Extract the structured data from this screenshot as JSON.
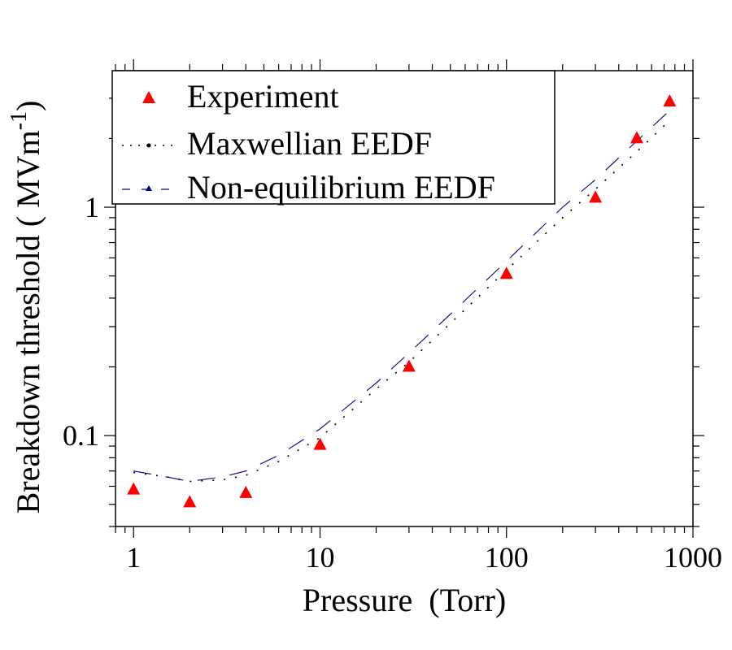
{
  "chart_data": {
    "type": "scatter",
    "title": "",
    "xlabel": "Pressure  (Torr)",
    "ylabel": "Breakdown threshold ( MVm",
    "ylabel_superscript": "-1",
    "ylabel_close": ")",
    "xscale": "log",
    "yscale": "log",
    "xlim": [
      0.8,
      1000
    ],
    "ylim": [
      0.04,
      3.96
    ],
    "xticks": [
      1,
      10,
      100,
      1000
    ],
    "xtick_labels": [
      "1",
      "10",
      "100",
      "1000"
    ],
    "yticks": [
      0.1,
      1
    ],
    "ytick_labels": [
      "0.1",
      "1"
    ],
    "grid": false,
    "legend_position": "top-left",
    "series": [
      {
        "name": "Experiment",
        "kind": "markers",
        "marker": "triangle",
        "color": "#ff0000",
        "x": [
          1,
          2,
          4,
          10,
          30,
          100,
          300,
          500,
          750
        ],
        "y": [
          0.058,
          0.051,
          0.056,
          0.091,
          0.2,
          0.51,
          1.1,
          2.0,
          2.9
        ]
      },
      {
        "name": "Maxwellian EEDF",
        "kind": "line",
        "style": "dotted",
        "color": "#000000",
        "x": [
          1,
          1.5,
          2,
          3,
          4,
          6,
          10,
          20,
          30,
          50,
          100,
          200,
          300,
          500,
          750
        ],
        "y": [
          0.069,
          0.066,
          0.063,
          0.064,
          0.067,
          0.077,
          0.098,
          0.16,
          0.21,
          0.31,
          0.53,
          0.9,
          1.2,
          1.75,
          2.4
        ]
      },
      {
        "name": "Non-equilibrium EEDF",
        "kind": "line",
        "style": "dashed",
        "color": "#00008b",
        "x": [
          1,
          1.5,
          2,
          3,
          4,
          6,
          10,
          20,
          30,
          50,
          100,
          200,
          300,
          500,
          750
        ],
        "y": [
          0.07,
          0.066,
          0.063,
          0.066,
          0.07,
          0.082,
          0.107,
          0.17,
          0.23,
          0.34,
          0.58,
          1.0,
          1.32,
          1.95,
          2.65
        ]
      }
    ]
  }
}
